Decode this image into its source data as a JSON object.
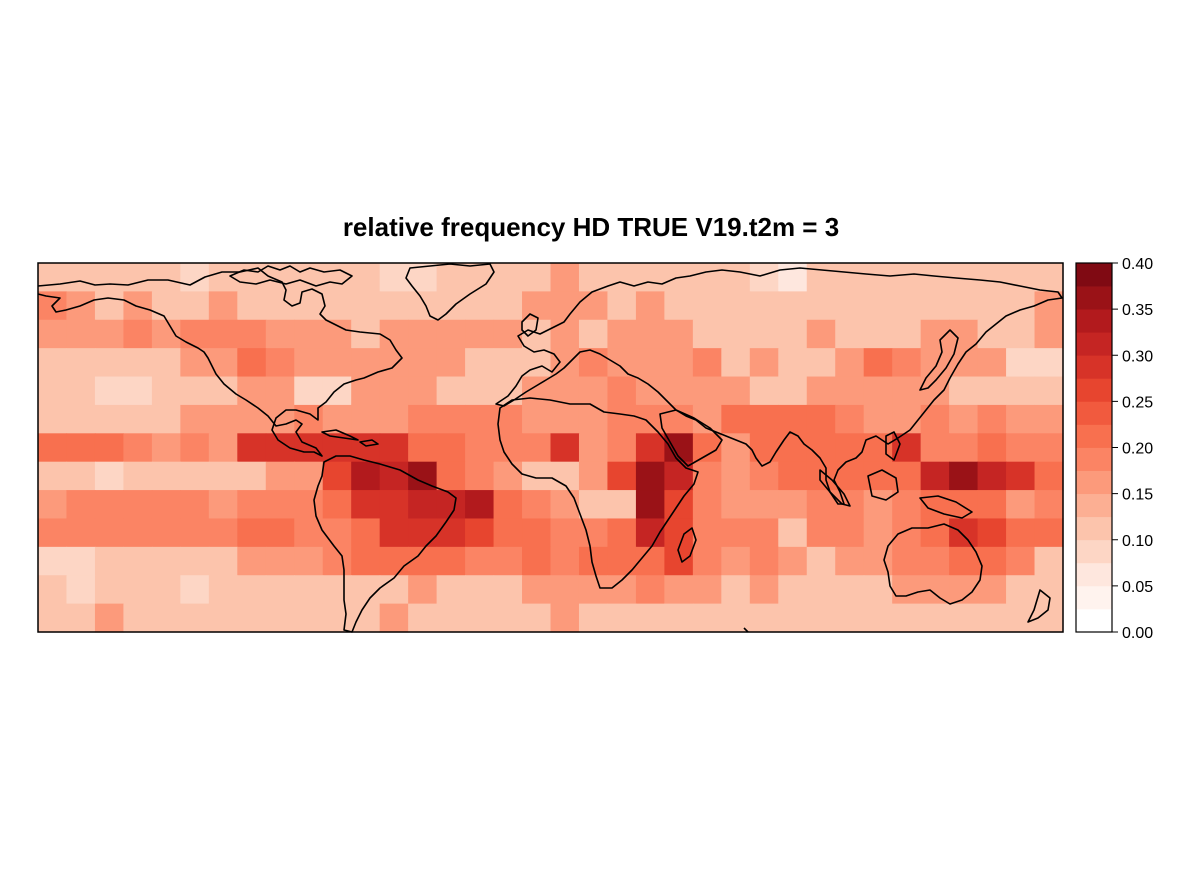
{
  "title": "relative frequency HD TRUE V19.t2m = 3",
  "chart_data": {
    "type": "heatmap",
    "title": "relative frequency HD TRUE V19.t2m = 3",
    "map_projection": "equirectangular",
    "lon_range": [
      -180,
      180
    ],
    "lat_range": [
      -60,
      70
    ],
    "coastlines": true,
    "colorbar": {
      "position": "right",
      "breaks": [
        0.0,
        0.025,
        0.05,
        0.075,
        0.1,
        0.125,
        0.15,
        0.175,
        0.2,
        0.225,
        0.25,
        0.275,
        0.3,
        0.325,
        0.35,
        0.375,
        0.4
      ],
      "tick_labels": [
        "0.00",
        "0.05",
        "0.10",
        "0.15",
        "0.20",
        "0.25",
        "0.30",
        "0.35",
        "0.40"
      ],
      "tick_values": [
        0.0,
        0.05,
        0.1,
        0.15,
        0.2,
        0.25,
        0.3,
        0.35,
        0.4
      ],
      "colors": [
        "#FFFFFF",
        "#FFF3EE",
        "#FEE7DE",
        "#FDD6C5",
        "#FCC4AC",
        "#FCAF93",
        "#FC9A7B",
        "#FB8464",
        "#F8704F",
        "#F15A3E",
        "#E7452F",
        "#D73328",
        "#C52523",
        "#B21A1D",
        "#9A1217",
        "#800A13",
        "#67000D"
      ]
    },
    "grid_columns": 36,
    "grid_rows": 13,
    "values": [
      [
        0.12,
        0.1,
        0.1,
        0.12,
        0.12,
        0.08,
        0.1,
        0.12,
        0.12,
        0.12,
        0.1,
        0.12,
        0.08,
        0.08,
        0.1,
        0.12,
        0.12,
        0.12,
        0.15,
        0.12,
        0.12,
        0.12,
        0.12,
        0.12,
        0.1,
        0.08,
        0.05,
        0.1,
        0.1,
        0.1,
        0.1,
        0.12,
        0.12,
        0.12,
        0.1,
        0.12
      ],
      [
        0.18,
        0.15,
        0.12,
        0.15,
        0.12,
        0.12,
        0.15,
        0.12,
        0.1,
        0.12,
        0.12,
        0.12,
        0.1,
        0.1,
        0.12,
        0.12,
        0.12,
        0.15,
        0.15,
        0.15,
        0.12,
        0.15,
        0.12,
        0.12,
        0.12,
        0.1,
        0.1,
        0.12,
        0.12,
        0.1,
        0.1,
        0.12,
        0.12,
        0.12,
        0.12,
        0.15
      ],
      [
        0.15,
        0.15,
        0.15,
        0.18,
        0.15,
        0.18,
        0.18,
        0.18,
        0.15,
        0.15,
        0.15,
        0.12,
        0.15,
        0.15,
        0.15,
        0.15,
        0.15,
        0.12,
        0.15,
        0.12,
        0.15,
        0.15,
        0.15,
        0.12,
        0.12,
        0.1,
        0.12,
        0.15,
        0.12,
        0.1,
        0.12,
        0.15,
        0.15,
        0.12,
        0.12,
        0.15
      ],
      [
        0.12,
        0.12,
        0.1,
        0.12,
        0.12,
        0.15,
        0.15,
        0.2,
        0.18,
        0.15,
        0.15,
        0.15,
        0.15,
        0.15,
        0.15,
        0.12,
        0.12,
        0.12,
        0.15,
        0.18,
        0.15,
        0.15,
        0.15,
        0.18,
        0.12,
        0.15,
        0.1,
        0.12,
        0.15,
        0.2,
        0.18,
        0.15,
        0.15,
        0.15,
        0.08,
        0.08
      ],
      [
        0.1,
        0.1,
        0.08,
        0.08,
        0.1,
        0.12,
        0.12,
        0.15,
        0.15,
        0.08,
        0.08,
        0.15,
        0.15,
        0.15,
        0.12,
        0.12,
        0.12,
        0.15,
        0.15,
        0.15,
        0.18,
        0.15,
        0.15,
        0.15,
        0.15,
        0.12,
        0.12,
        0.15,
        0.15,
        0.15,
        0.15,
        0.15,
        0.12,
        0.12,
        0.12,
        0.12
      ],
      [
        0.12,
        0.12,
        0.1,
        0.12,
        0.12,
        0.15,
        0.15,
        0.15,
        0.15,
        0.18,
        0.15,
        0.15,
        0.15,
        0.18,
        0.18,
        0.18,
        0.18,
        0.15,
        0.15,
        0.15,
        0.18,
        0.18,
        0.18,
        0.15,
        0.2,
        0.2,
        0.22,
        0.2,
        0.18,
        0.15,
        0.15,
        0.18,
        0.15,
        0.18,
        0.15,
        0.15
      ],
      [
        0.22,
        0.22,
        0.22,
        0.18,
        0.15,
        0.18,
        0.15,
        0.28,
        0.28,
        0.28,
        0.28,
        0.28,
        0.28,
        0.22,
        0.22,
        0.18,
        0.18,
        0.18,
        0.28,
        0.15,
        0.18,
        0.28,
        0.35,
        0.2,
        0.15,
        0.2,
        0.22,
        0.2,
        0.22,
        0.2,
        0.28,
        0.18,
        0.18,
        0.2,
        0.18,
        0.18
      ],
      [
        0.12,
        0.1,
        0.08,
        0.1,
        0.1,
        0.12,
        0.12,
        0.12,
        0.15,
        0.15,
        0.25,
        0.33,
        0.3,
        0.35,
        0.22,
        0.18,
        0.15,
        0.12,
        0.12,
        0.15,
        0.25,
        0.35,
        0.3,
        0.18,
        0.15,
        0.18,
        0.22,
        0.22,
        0.22,
        0.22,
        0.22,
        0.3,
        0.35,
        0.3,
        0.28,
        0.2
      ],
      [
        0.15,
        0.18,
        0.18,
        0.18,
        0.18,
        0.18,
        0.15,
        0.18,
        0.18,
        0.18,
        0.22,
        0.28,
        0.28,
        0.32,
        0.32,
        0.33,
        0.22,
        0.18,
        0.15,
        0.12,
        0.1,
        0.35,
        0.25,
        0.18,
        0.15,
        0.15,
        0.15,
        0.18,
        0.18,
        0.15,
        0.18,
        0.22,
        0.2,
        0.22,
        0.15,
        0.18
      ],
      [
        0.18,
        0.18,
        0.18,
        0.18,
        0.18,
        0.18,
        0.18,
        0.22,
        0.2,
        0.18,
        0.18,
        0.22,
        0.28,
        0.28,
        0.28,
        0.25,
        0.22,
        0.2,
        0.18,
        0.18,
        0.2,
        0.3,
        0.25,
        0.18,
        0.18,
        0.18,
        0.12,
        0.18,
        0.18,
        0.15,
        0.18,
        0.2,
        0.28,
        0.25,
        0.22,
        0.22
      ],
      [
        0.08,
        0.08,
        0.1,
        0.1,
        0.1,
        0.12,
        0.12,
        0.15,
        0.15,
        0.15,
        0.18,
        0.2,
        0.2,
        0.2,
        0.2,
        0.18,
        0.18,
        0.2,
        0.18,
        0.2,
        0.2,
        0.22,
        0.25,
        0.18,
        0.15,
        0.18,
        0.15,
        0.12,
        0.15,
        0.15,
        0.18,
        0.18,
        0.22,
        0.2,
        0.18,
        0.12
      ],
      [
        0.12,
        0.08,
        0.1,
        0.1,
        0.1,
        0.08,
        0.1,
        0.12,
        0.12,
        0.12,
        0.12,
        0.12,
        0.12,
        0.15,
        0.12,
        0.12,
        0.12,
        0.15,
        0.15,
        0.15,
        0.15,
        0.18,
        0.15,
        0.15,
        0.12,
        0.15,
        0.12,
        0.12,
        0.1,
        0.12,
        0.15,
        0.15,
        0.15,
        0.15,
        0.12,
        0.1
      ],
      [
        0.12,
        0.12,
        0.15,
        0.12,
        0.12,
        0.12,
        0.1,
        0.1,
        0.1,
        0.1,
        0.12,
        0.12,
        0.15,
        0.12,
        0.12,
        0.12,
        0.1,
        0.12,
        0.15,
        0.12,
        0.12,
        0.12,
        0.1,
        0.1,
        0.1,
        0.12,
        0.12,
        0.12,
        0.12,
        0.12,
        0.12,
        0.12,
        0.12,
        0.12,
        0.1,
        0.12
      ]
    ]
  }
}
